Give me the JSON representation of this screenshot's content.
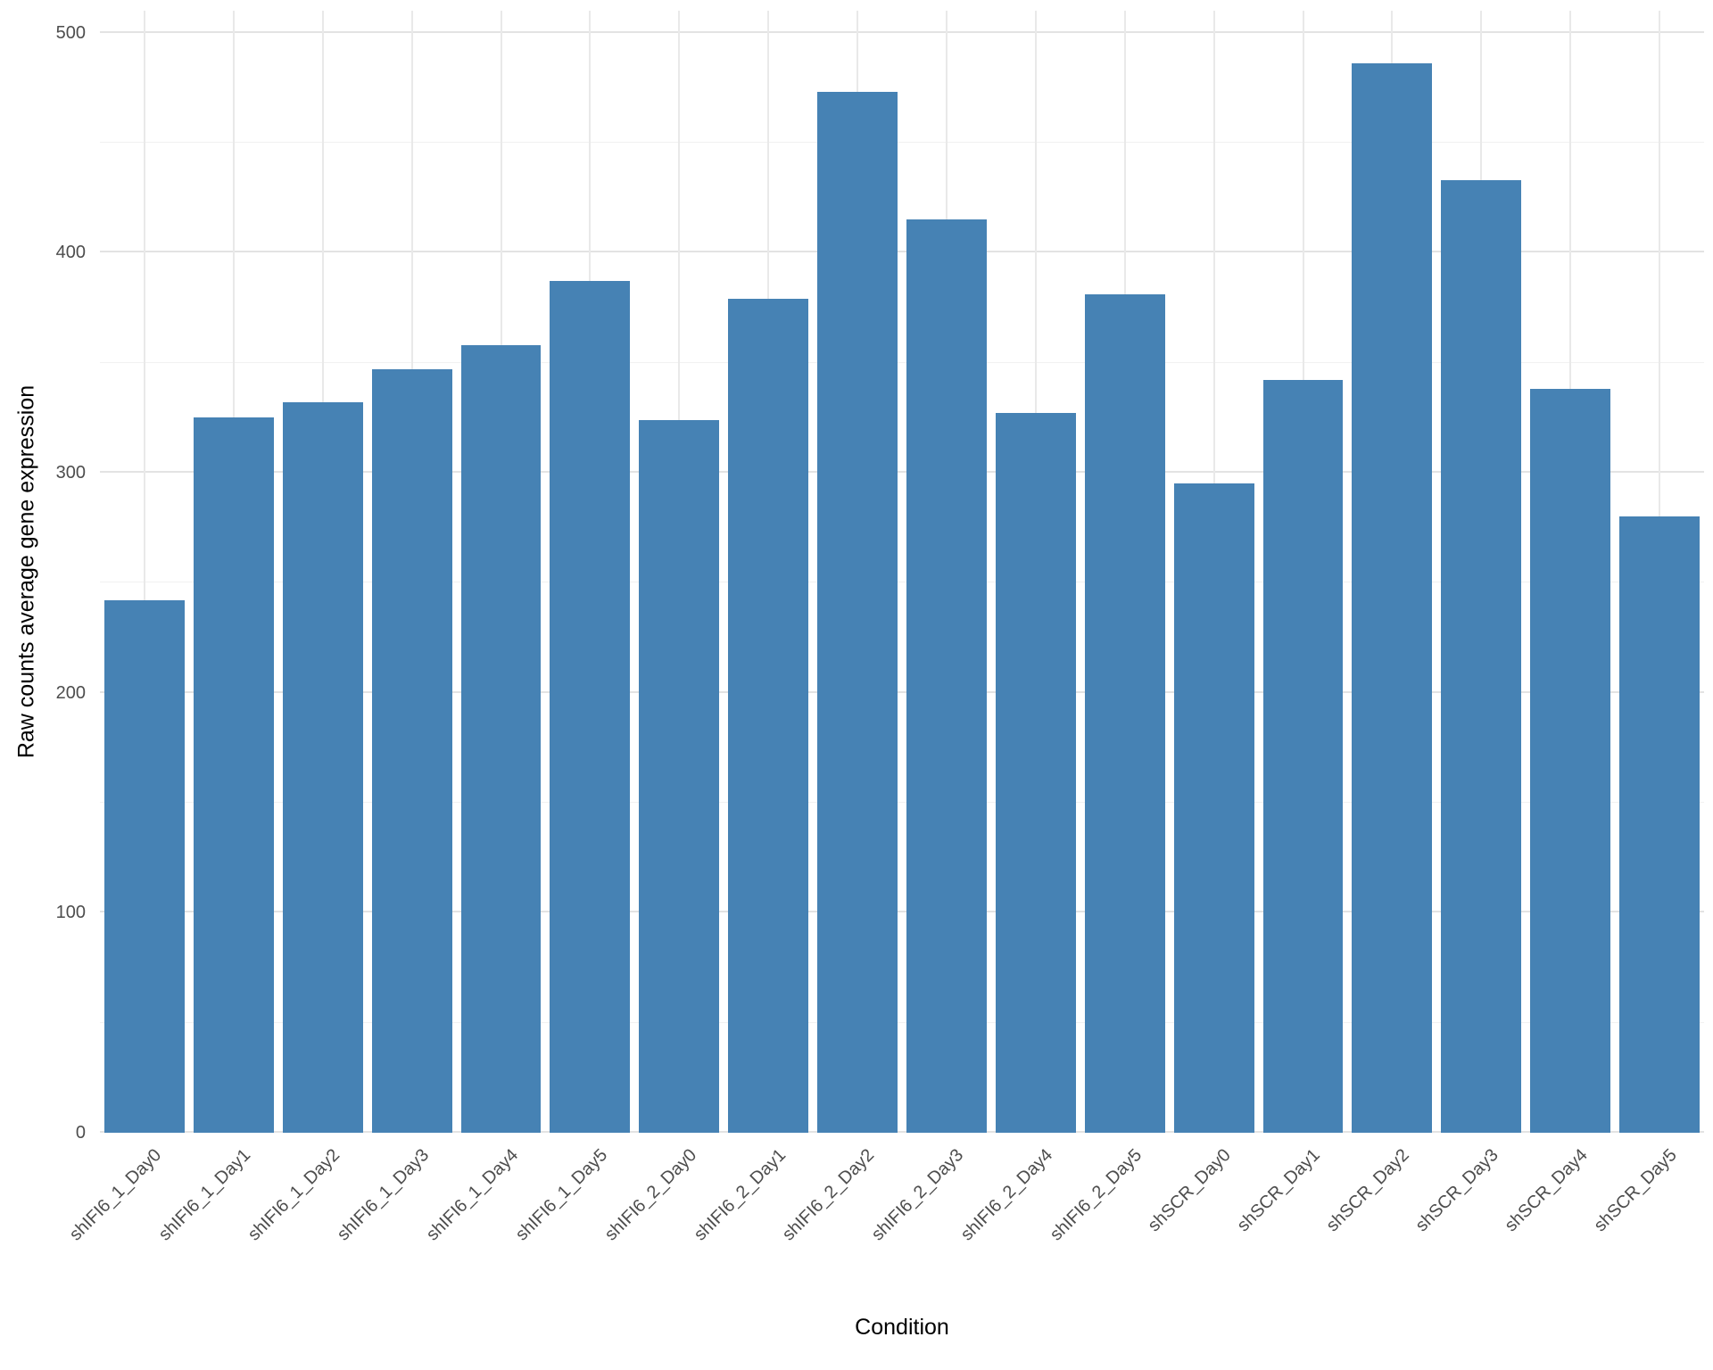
{
  "chart_data": {
    "type": "bar",
    "title": "",
    "xlabel": "Condition",
    "ylabel": "Raw counts average gene expression",
    "categories": [
      "shIFI6_1_Day0",
      "shIFI6_1_Day1",
      "shIFI6_1_Day2",
      "shIFI6_1_Day3",
      "shIFI6_1_Day4",
      "shIFI6_1_Day5",
      "shIFI6_2_Day0",
      "shIFI6_2_Day1",
      "shIFI6_2_Day2",
      "shIFI6_2_Day3",
      "shIFI6_2_Day4",
      "shIFI6_2_Day5",
      "shSCR_Day0",
      "shSCR_Day1",
      "shSCR_Day2",
      "shSCR_Day3",
      "shSCR_Day4",
      "shSCR_Day5"
    ],
    "values": [
      242,
      325,
      332,
      347,
      358,
      387,
      324,
      379,
      473,
      415,
      327,
      381,
      295,
      342,
      486,
      433,
      338,
      280
    ],
    "ylim": [
      0,
      510
    ],
    "yticks_major": [
      0,
      100,
      200,
      300,
      400,
      500
    ],
    "yticks_minor": [
      50,
      150,
      250,
      350,
      450
    ],
    "bar_color": "#4682B4",
    "bar_width_fraction": 0.9,
    "grid_major_color": "#e3e3e3",
    "grid_minor_color": "#f1f1f1",
    "grid_vertical_color": "#e9e9e9",
    "background": "#ffffff",
    "legend": "none"
  }
}
